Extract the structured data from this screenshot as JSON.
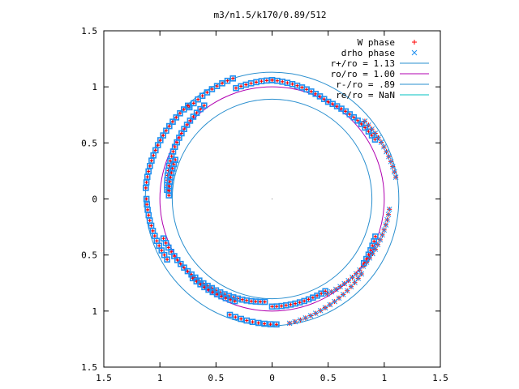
{
  "chart_data": {
    "type": "scatter",
    "title": "m3/n1.5/k170/0.89/512",
    "xlim": [
      -1.5,
      1.5
    ],
    "ylim": [
      -1.5,
      1.5
    ],
    "xticks": [
      -1.5,
      -1,
      -0.5,
      0,
      0.5,
      1,
      1.5
    ],
    "yticks": [
      -1.5,
      -1,
      -0.5,
      0,
      0.5,
      1,
      1.5
    ],
    "xtick_labels": [
      "1.5",
      "1",
      "0.5",
      "0",
      "0.5",
      "1",
      "1.5"
    ],
    "ytick_labels": [
      "1.5",
      "1",
      "0.5",
      "0",
      "0.5",
      "1",
      "1.5"
    ],
    "grid": false,
    "legend_position": "top-right",
    "series": [
      {
        "name": "W phase",
        "kind": "points",
        "marker": "plus",
        "color": "#ff0000"
      },
      {
        "name": "drho phase",
        "kind": "points",
        "marker": "cross",
        "color": "#2090f0"
      },
      {
        "name": "r+/ro = 1.13",
        "kind": "circle",
        "r": 1.13,
        "color": "#2a8fcf"
      },
      {
        "name": "ro/ro = 1.00",
        "kind": "circle",
        "r": 1.0,
        "color": "#b000b0"
      },
      {
        "name": "r-/ro = .89",
        "kind": "circle",
        "r": 0.89,
        "color": "#2a8fcf"
      },
      {
        "name": "re/ro = NaN",
        "kind": "circle",
        "r": null,
        "color": "#00c0c0"
      }
    ],
    "point_arcs": [
      {
        "style": "square",
        "r": [
          1.04,
          1.06
        ],
        "angle_deg": [
          108,
          90
        ]
      },
      {
        "style": "square",
        "r": [
          1.06,
          1.0
        ],
        "angle_deg": [
          90,
          60
        ]
      },
      {
        "style": "square",
        "r": [
          1.13,
          1.1
        ],
        "angle_deg": [
          108,
          132
        ]
      },
      {
        "style": "square",
        "r": [
          1.12,
          1.13
        ],
        "angle_deg": [
          132,
          175
        ]
      },
      {
        "style": "square",
        "r": [
          1.03,
          0.94
        ],
        "angle_deg": [
          126,
          175
        ]
      },
      {
        "style": "square",
        "r": [
          0.93,
          0.92
        ],
        "angle_deg": [
          158,
          178
        ]
      },
      {
        "style": "square",
        "r": [
          1.12,
          1.08
        ],
        "angle_deg": [
          180,
          210
        ]
      },
      {
        "style": "square",
        "r": [
          1.03,
          0.96
        ],
        "angle_deg": [
          200,
          236
        ]
      },
      {
        "style": "square",
        "r": [
          0.96,
          0.92
        ],
        "angle_deg": [
          236,
          266
        ]
      },
      {
        "style": "square",
        "r": [
          1.0,
          0.97
        ],
        "angle_deg": [
          225,
          250
        ]
      },
      {
        "style": "square",
        "r": [
          1.1,
          1.12
        ],
        "angle_deg": [
          250,
          272
        ]
      },
      {
        "style": "square",
        "r": [
          0.96,
          0.95
        ],
        "angle_deg": [
          270,
          300
        ]
      },
      {
        "style": "square",
        "r": [
          1.0,
          1.06
        ],
        "angle_deg": [
          60,
          30
        ]
      },
      {
        "style": "square",
        "r": [
          0.98,
          1.0
        ],
        "angle_deg": [
          -20,
          -35
        ]
      },
      {
        "style": "star",
        "r": [
          1.08,
          1.12
        ],
        "angle_deg": [
          40,
          10
        ]
      },
      {
        "style": "star",
        "r": [
          1.05,
          0.98
        ],
        "angle_deg": [
          -5,
          -60
        ]
      },
      {
        "style": "star",
        "r": [
          1.12,
          1.08
        ],
        "angle_deg": [
          278,
          296
        ]
      },
      {
        "style": "star",
        "r": [
          1.08,
          1.04
        ],
        "angle_deg": [
          296,
          320
        ]
      }
    ]
  }
}
